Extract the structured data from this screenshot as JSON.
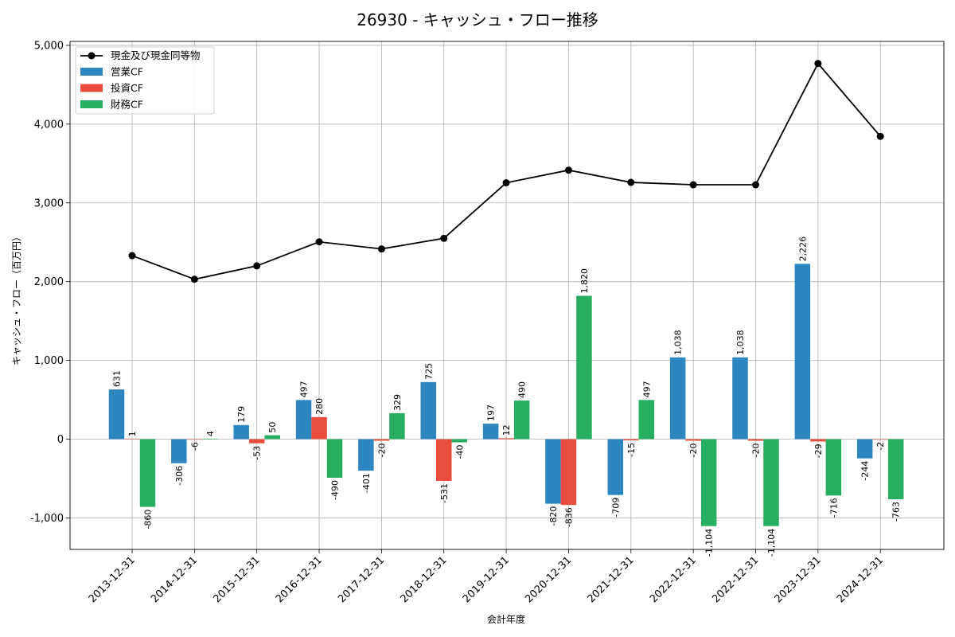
{
  "chart_data": {
    "type": "bar",
    "title": "26930 - キャッシュ・フロー推移",
    "xlabel": "会計年度",
    "ylabel": "キャッシュ・フロー（百万円）",
    "ylim": [
      -1400,
      5050
    ],
    "yticks": [
      -1000,
      0,
      1000,
      2000,
      3000,
      4000,
      5000
    ],
    "ytick_labels": [
      "-1,000",
      "0",
      "1,000",
      "2,000",
      "3,000",
      "4,000",
      "5,000"
    ],
    "grid": true,
    "legend_position": "top-left",
    "categories": [
      "2013-12-31",
      "2014-12-31",
      "2015-12-31",
      "2016-12-31",
      "2017-12-31",
      "2018-12-31",
      "2019-12-31",
      "2020-12-31",
      "2021-12-31",
      "2022-12-31",
      "2022-12-31",
      "2023-12-31",
      "2024-12-31"
    ],
    "line_series": {
      "name": "現金及び現金同等物",
      "color": "#000000",
      "values": [
        2330,
        2030,
        2200,
        2505,
        2415,
        2550,
        3255,
        3415,
        3260,
        3230,
        3230,
        4770,
        3845
      ]
    },
    "series": [
      {
        "name": "営業CF",
        "color": "#2e86c1",
        "values": [
          631,
          -306,
          179,
          497,
          -401,
          725,
          197,
          -820,
          -709,
          1038,
          1038,
          2226,
          -244
        ],
        "labels": [
          "631",
          "-306",
          "179",
          "497",
          "-401",
          "725",
          "197",
          "-820",
          "-709",
          "1,038",
          "1,038",
          "2,226",
          "-244"
        ]
      },
      {
        "name": "投資CF",
        "color": "#e74c3c",
        "values": [
          1,
          -6,
          -53,
          280,
          -20,
          -531,
          12,
          -836,
          -15,
          -20,
          -20,
          -29,
          -2
        ],
        "labels": [
          "1",
          "-6",
          "-53",
          "280",
          "-20",
          "-531",
          "12",
          "-836",
          "-15",
          "-20",
          "-20",
          "-29",
          "-2"
        ]
      },
      {
        "name": "財務CF",
        "color": "#27ae60",
        "values": [
          -860,
          4,
          50,
          -490,
          329,
          -40,
          490,
          1820,
          497,
          -1104,
          -1104,
          -716,
          -763
        ],
        "labels": [
          "-860",
          "4",
          "50",
          "-490",
          "329",
          "-40",
          "490",
          "1,820",
          "497",
          "-1,104",
          "-1,104",
          "-716",
          "-763"
        ]
      }
    ]
  }
}
